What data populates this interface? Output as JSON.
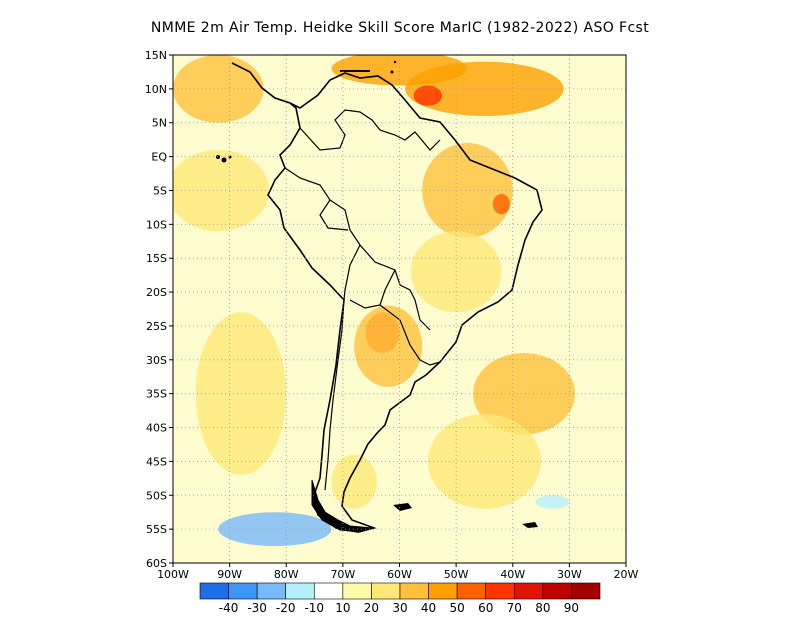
{
  "title": "NMME  2m Air Temp. Heidke Skill Score MarIC (1982-2022) ASO Fcst",
  "map": {
    "lon_range": [
      -100,
      -20
    ],
    "lat_range": [
      -60,
      15
    ],
    "lon_ticks": [
      {
        "value": -100,
        "label": "100W"
      },
      {
        "value": -90,
        "label": "90W"
      },
      {
        "value": -80,
        "label": "80W"
      },
      {
        "value": -70,
        "label": "70W"
      },
      {
        "value": -60,
        "label": "60W"
      },
      {
        "value": -50,
        "label": "50W"
      },
      {
        "value": -40,
        "label": "40W"
      },
      {
        "value": -30,
        "label": "30W"
      },
      {
        "value": -20,
        "label": "20W"
      }
    ],
    "lat_ticks": [
      {
        "value": 15,
        "label": "15N"
      },
      {
        "value": 10,
        "label": "10N"
      },
      {
        "value": 5,
        "label": "5N"
      },
      {
        "value": 0,
        "label": "EQ"
      },
      {
        "value": -5,
        "label": "5S"
      },
      {
        "value": -10,
        "label": "10S"
      },
      {
        "value": -15,
        "label": "15S"
      },
      {
        "value": -20,
        "label": "20S"
      },
      {
        "value": -25,
        "label": "25S"
      },
      {
        "value": -30,
        "label": "30S"
      },
      {
        "value": -35,
        "label": "35S"
      },
      {
        "value": -40,
        "label": "40S"
      },
      {
        "value": -45,
        "label": "45S"
      },
      {
        "value": -50,
        "label": "50S"
      },
      {
        "value": -55,
        "label": "55S"
      },
      {
        "value": -60,
        "label": "60S"
      }
    ],
    "regions": [
      {
        "name": "tropical north atlantic",
        "value": 45,
        "lon": -45,
        "lat": 10,
        "rx": 14,
        "ry": 4
      },
      {
        "name": "caribbean strip",
        "value": 40,
        "lon": -60,
        "lat": 13,
        "rx": 12,
        "ry": 2.5
      },
      {
        "name": "eastern pacific north",
        "value": 35,
        "lon": -92,
        "lat": 10,
        "rx": 8,
        "ry": 5
      },
      {
        "name": "venezuela hotspot",
        "value": 60,
        "lon": -55,
        "lat": 9,
        "rx": 2.5,
        "ry": 1.5
      },
      {
        "name": "eastern pacific tropics",
        "value": 25,
        "lon": -92,
        "lat": -5,
        "rx": 9,
        "ry": 6
      },
      {
        "name": "northern brazil",
        "value": 30,
        "lon": -48,
        "lat": -5,
        "rx": 8,
        "ry": 7
      },
      {
        "name": "northeast brazil spot",
        "value": 50,
        "lon": -42,
        "lat": -7,
        "rx": 1.5,
        "ry": 1.5
      },
      {
        "name": "central brazil",
        "value": 25,
        "lon": -50,
        "lat": -17,
        "rx": 8,
        "ry": 6
      },
      {
        "name": "chaco hotspot",
        "value": 55,
        "lon": -63,
        "lat": -26,
        "rx": 3,
        "ry": 3
      },
      {
        "name": "chaco region",
        "value": 35,
        "lon": -62,
        "lat": -28,
        "rx": 6,
        "ry": 6
      },
      {
        "name": "south atlantic",
        "value": 30,
        "lon": -38,
        "lat": -35,
        "rx": 9,
        "ry": 6
      },
      {
        "name": "southwest atlantic",
        "value": 25,
        "lon": -45,
        "lat": -45,
        "rx": 10,
        "ry": 7
      },
      {
        "name": "south pacific",
        "value": 20,
        "lon": -88,
        "lat": -35,
        "rx": 8,
        "ry": 12
      },
      {
        "name": "patagonia",
        "value": 25,
        "lon": -68,
        "lat": -48,
        "rx": 4,
        "ry": 4
      },
      {
        "name": "drake passage cold",
        "value": -30,
        "lon": -82,
        "lat": -55,
        "rx": 10,
        "ry": 2.5
      },
      {
        "name": "south atlantic cold spot",
        "value": -15,
        "lon": -33,
        "lat": -51,
        "rx": 3,
        "ry": 1
      }
    ]
  },
  "colorbar": {
    "colors": [
      "#1e6eeb",
      "#3c96f5",
      "#78b9fa",
      "#b4f0fa",
      "#ffffff",
      "#fffaaa",
      "#ffe878",
      "#ffc03c",
      "#ffa000",
      "#ff6000",
      "#ff3200",
      "#e11400",
      "#c00000",
      "#a50000"
    ],
    "labels": [
      "-40",
      "-30",
      "-20",
      "-10",
      "10",
      "20",
      "30",
      "40",
      "50",
      "60",
      "70",
      "80",
      "90"
    ]
  }
}
